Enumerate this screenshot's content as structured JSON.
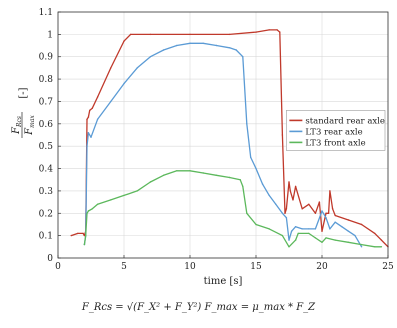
{
  "chart_data": {
    "type": "line",
    "xlabel": "time [s]",
    "ylabel": {
      "numerator": "F",
      "numerator_sub": "Rcs",
      "denominator": "F",
      "denominator_sub": "max",
      "unit": "[-]"
    },
    "xlim": [
      0,
      25
    ],
    "ylim": [
      0,
      1.1
    ],
    "xticks": [
      "0",
      "5",
      "10",
      "15",
      "20",
      "25"
    ],
    "yticks": [
      "0",
      "0.1",
      "0.2",
      "0.3",
      "0.4",
      "0.5",
      "0.6",
      "0.7",
      "0.8",
      "0.9",
      "1",
      "1.1"
    ],
    "grid": true,
    "legend_position": "right",
    "colors": {
      "standard": "#c0392b",
      "lt3_rear": "#5b9bd5",
      "lt3_front": "#5cb85c"
    },
    "series": [
      {
        "name": "standard rear axle",
        "color_key": "standard",
        "x": [
          1.0,
          1.5,
          1.9,
          2.0,
          2.1,
          2.2,
          2.3,
          2.4,
          2.6,
          3.0,
          4.0,
          5.0,
          5.5,
          7.0,
          10.0,
          13.0,
          15.0,
          16.0,
          16.6,
          16.8,
          17.0,
          17.2,
          17.3,
          17.5,
          17.6,
          17.8,
          18.0,
          18.5,
          19.0,
          19.5,
          19.8,
          20.0,
          20.3,
          20.5,
          20.6,
          20.8,
          21.0,
          22.0,
          23.0,
          24.0,
          24.5,
          25.0
        ],
        "y": [
          0.1,
          0.11,
          0.11,
          0.1,
          0.12,
          0.62,
          0.63,
          0.66,
          0.67,
          0.72,
          0.85,
          0.97,
          1.0,
          1.0,
          1.0,
          1.0,
          1.01,
          1.02,
          1.02,
          1.01,
          0.55,
          0.2,
          0.22,
          0.34,
          0.3,
          0.26,
          0.32,
          0.22,
          0.24,
          0.2,
          0.25,
          0.12,
          0.2,
          0.2,
          0.3,
          0.22,
          0.19,
          0.17,
          0.15,
          0.11,
          0.08,
          0.05
        ]
      },
      {
        "name": "LT3 rear axle",
        "color_key": "lt3_rear",
        "x": [
          2.0,
          2.1,
          2.2,
          2.3,
          2.5,
          3.0,
          4.0,
          5.0,
          6.0,
          7.0,
          8.0,
          9.0,
          10.0,
          11.0,
          12.0,
          13.0,
          13.5,
          14.0,
          14.3,
          14.6,
          15.0,
          15.5,
          16.0,
          16.5,
          17.0,
          17.3,
          17.5,
          17.7,
          18.0,
          18.5,
          19.0,
          19.5,
          20.0,
          20.3,
          20.6,
          21.0,
          21.5,
          22.0,
          22.5,
          23.0
        ],
        "y": [
          0.06,
          0.1,
          0.5,
          0.56,
          0.54,
          0.62,
          0.7,
          0.78,
          0.85,
          0.9,
          0.93,
          0.95,
          0.96,
          0.96,
          0.95,
          0.94,
          0.93,
          0.9,
          0.6,
          0.45,
          0.4,
          0.33,
          0.28,
          0.24,
          0.2,
          0.18,
          0.08,
          0.12,
          0.14,
          0.13,
          0.13,
          0.13,
          0.21,
          0.18,
          0.13,
          0.16,
          0.14,
          0.12,
          0.1,
          0.05
        ]
      },
      {
        "name": "LT3 front axle",
        "color_key": "lt3_front",
        "x": [
          2.0,
          2.1,
          2.2,
          2.3,
          2.6,
          3.0,
          4.0,
          5.0,
          6.0,
          7.0,
          8.0,
          9.0,
          10.0,
          11.0,
          12.0,
          13.0,
          13.8,
          14.0,
          14.3,
          15.0,
          16.0,
          17.0,
          17.5,
          18.0,
          18.2,
          19.0,
          19.5,
          20.0,
          20.3,
          21.0,
          22.0,
          23.0,
          24.0,
          24.5
        ],
        "y": [
          0.06,
          0.1,
          0.2,
          0.21,
          0.22,
          0.24,
          0.26,
          0.28,
          0.3,
          0.34,
          0.37,
          0.39,
          0.39,
          0.38,
          0.37,
          0.36,
          0.35,
          0.32,
          0.2,
          0.15,
          0.13,
          0.1,
          0.05,
          0.08,
          0.11,
          0.11,
          0.09,
          0.07,
          0.09,
          0.08,
          0.07,
          0.06,
          0.05,
          0.05
        ]
      }
    ]
  },
  "caption": "F_Rcs = √(F_X² + F_Y²)    F_max = μ_max * F_Z"
}
